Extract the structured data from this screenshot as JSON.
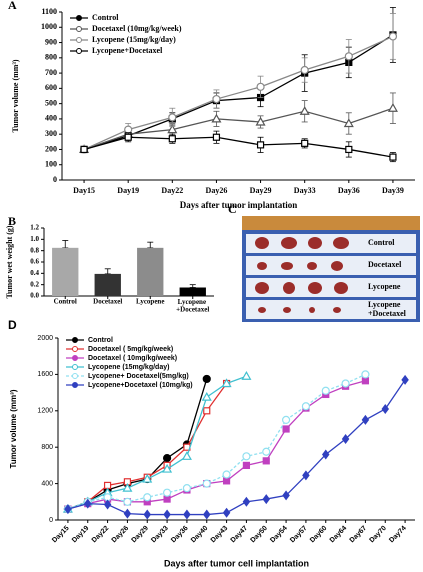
{
  "chart_data": [
    {
      "type": "line",
      "label": "A",
      "x_label": "Days after tumor implantation",
      "y_label": "Tumor volume (mm³)",
      "categories": [
        "Day15",
        "Day19",
        "Day22",
        "Day26",
        "Day29",
        "Day33",
        "Day36",
        "Day39"
      ],
      "ylim": [
        0,
        1100
      ],
      "yticks": [
        0,
        100,
        200,
        300,
        400,
        500,
        600,
        700,
        800,
        900,
        1000,
        1100
      ],
      "series": [
        {
          "name": "Control",
          "color": "#000000",
          "marker": "square",
          "values": [
            200,
            290,
            400,
            520,
            540,
            700,
            770,
            950
          ],
          "errors": [
            20,
            30,
            40,
            50,
            60,
            120,
            100,
            180
          ]
        },
        {
          "name": "Docetaxel (10mg/kg/week)",
          "color": "#555555",
          "marker": "triangle-open",
          "values": [
            200,
            300,
            330,
            400,
            380,
            450,
            370,
            470
          ],
          "errors": [
            20,
            30,
            40,
            50,
            40,
            70,
            70,
            100
          ]
        },
        {
          "name": "Lycopene (15mg/kg/day)",
          "color": "#888888",
          "marker": "circle-open",
          "values": [
            200,
            330,
            410,
            530,
            610,
            720,
            810,
            940
          ],
          "errors": [
            20,
            40,
            60,
            60,
            70,
            80,
            110,
            150
          ]
        },
        {
          "name": "Lycopene+Docetaxel",
          "color": "#000000",
          "marker": "square-open",
          "values": [
            200,
            280,
            270,
            280,
            230,
            240,
            200,
            150
          ],
          "errors": [
            20,
            30,
            30,
            40,
            50,
            30,
            50,
            30
          ]
        }
      ]
    },
    {
      "type": "bar",
      "label": "B",
      "y_label": "Tumor wet weight (g)",
      "categories": [
        "Control",
        "Docetaxel",
        "Lycopene",
        "Lycopene +Docetaxel"
      ],
      "values": [
        0.85,
        0.39,
        0.85,
        0.15
      ],
      "errors": [
        0.13,
        0.09,
        0.1,
        0.05
      ],
      "colors": [
        "#a8a8a8",
        "#333333",
        "#8c8c8c",
        "#000000"
      ],
      "ylim": [
        0,
        1.2
      ],
      "yticks": [
        {
          "value": 0,
          "label": "0.0"
        },
        0.2,
        0.4,
        0.6,
        0.8,
        {
          "value": 1,
          "label": "1.0"
        },
        1.2
      ]
    },
    {
      "type": "line",
      "label": "D",
      "x_label": "Days after tumor cell implantation",
      "y_label": "Tumor volume (mm³)",
      "categories": [
        "Day15",
        "Day19",
        "Day22",
        "Day26",
        "Day29",
        "Day33",
        "Day36",
        "Day40",
        "Day43",
        "Day47",
        "Day50",
        "Day54",
        "Day57",
        "Day60",
        "Day64",
        "Day67",
        "Day70",
        "Day74"
      ],
      "ylim": [
        0,
        2000
      ],
      "yticks": [
        0,
        400,
        800,
        1200,
        1600,
        2000
      ],
      "series": [
        {
          "name": "Control",
          "color": "#000000",
          "marker": "circle",
          "values": [
            120,
            200,
            330,
            400,
            450,
            680,
            830,
            1550,
            null,
            null,
            null,
            null,
            null,
            null,
            null,
            null,
            null,
            null
          ]
        },
        {
          "name": "Docetaxel ( 5mg/kg/week)",
          "color": "#e03030",
          "marker": "square-open",
          "values": [
            120,
            200,
            380,
            420,
            470,
            600,
            800,
            1200,
            1500,
            null,
            null,
            null,
            null,
            null,
            null,
            null,
            null,
            null
          ]
        },
        {
          "name": "Docetaxel ( 10mg/kg/week)",
          "color": "#c040c0",
          "marker": "square",
          "values": [
            120,
            180,
            230,
            200,
            200,
            230,
            330,
            400,
            430,
            600,
            650,
            1000,
            1230,
            1380,
            1470,
            1530,
            null,
            null
          ]
        },
        {
          "name": "Lycopene (15mg/kg/day)",
          "color": "#40c0d0",
          "marker": "triangle-open",
          "values": [
            120,
            200,
            300,
            350,
            450,
            560,
            700,
            1350,
            1500,
            1580,
            null,
            null,
            null,
            null,
            null,
            null,
            null,
            null
          ]
        },
        {
          "name": "Lycopene+ Docetaxel(5mg/kg)",
          "color": "#90e0f0",
          "marker": "circle-open",
          "dash": true,
          "values": [
            120,
            200,
            250,
            200,
            250,
            300,
            350,
            400,
            500,
            700,
            750,
            1100,
            1250,
            1420,
            1500,
            1600,
            null,
            null
          ]
        },
        {
          "name": "Lycopene+Docetaxel (10mg/kg)",
          "color": "#3040c0",
          "marker": "diamond",
          "values": [
            120,
            180,
            170,
            70,
            60,
            60,
            60,
            60,
            80,
            200,
            230,
            270,
            490,
            720,
            890,
            1100,
            1220,
            1540
          ]
        }
      ]
    }
  ],
  "image_panel": {
    "label": "C",
    "rows": [
      "Control",
      "Docetaxel",
      "Lycopene",
      "Lycopene +Docetaxel"
    ]
  }
}
